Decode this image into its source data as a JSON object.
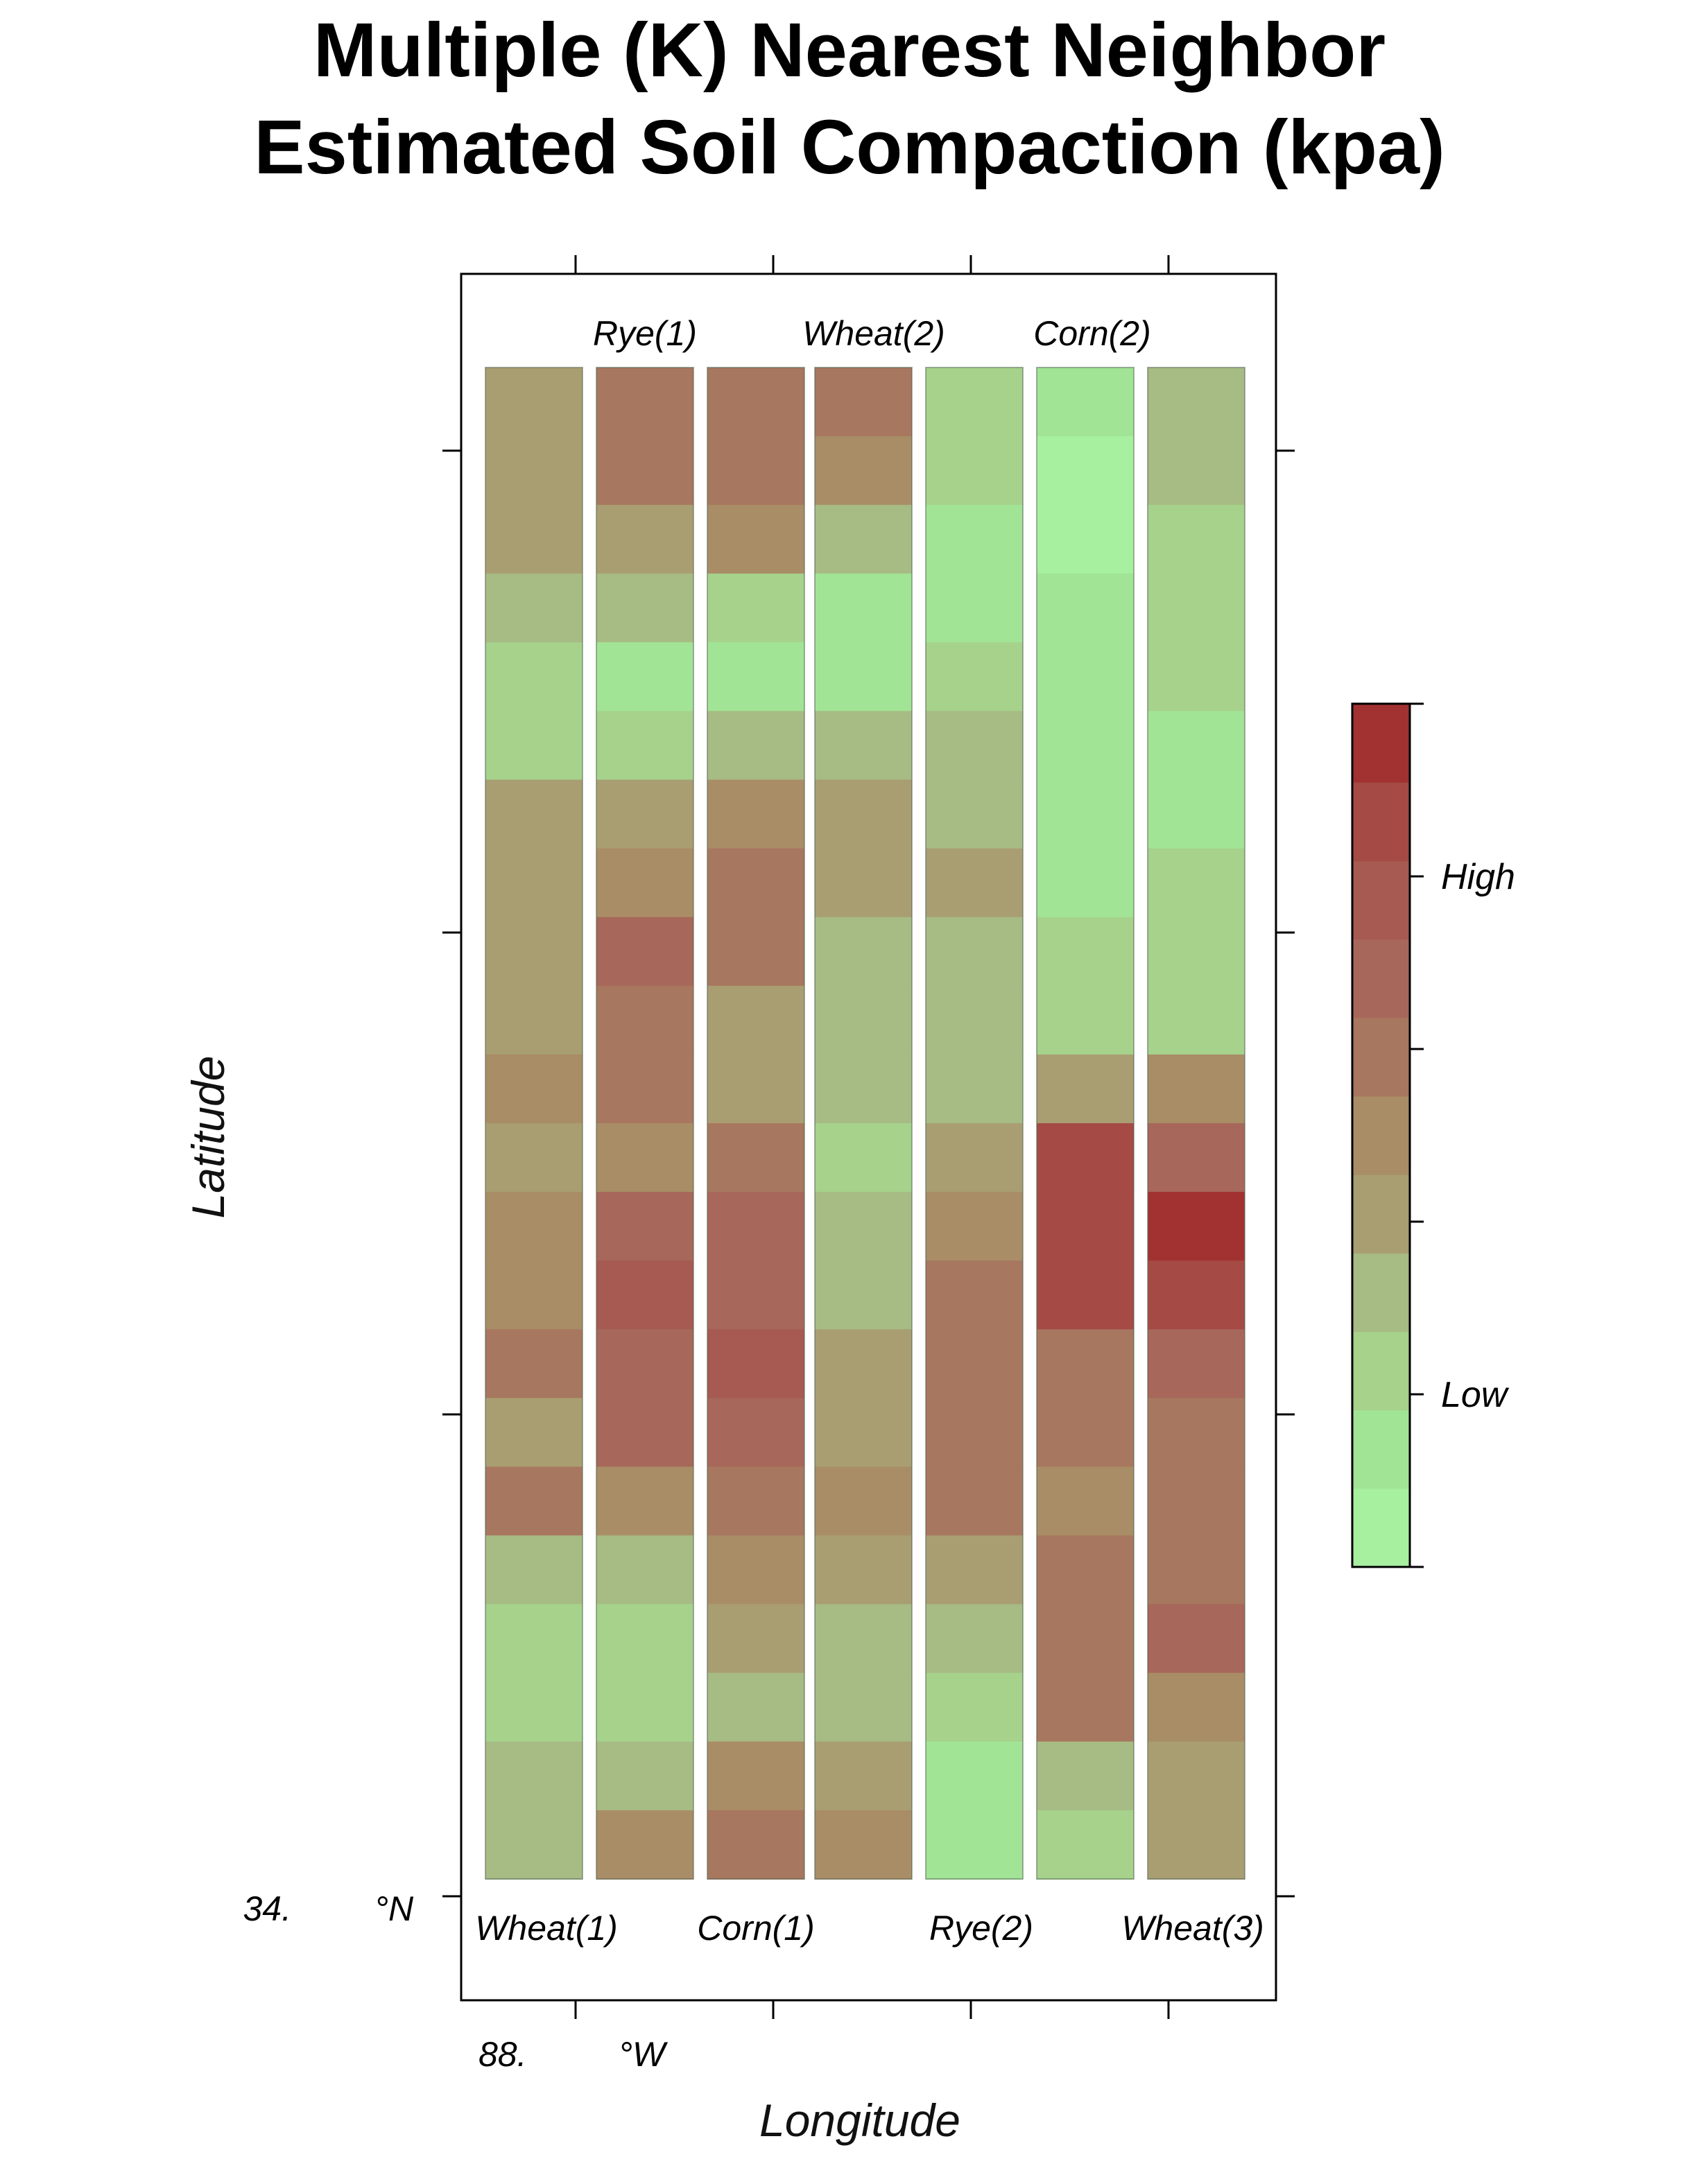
{
  "chart_data": {
    "type": "heatmap",
    "title": "Multiple (K) Nearest Neighbor",
    "subtitle": "Estimated Soil Compaction (kpa)",
    "xlabel": "Longitude",
    "ylabel": "Latitude",
    "x_tick_label": {
      "value": "88.",
      "unit": "°W"
    },
    "y_tick_label": {
      "value": "34.",
      "unit": "°N"
    },
    "strips_top": [
      "Rye(1)",
      "Wheat(2)",
      "Corn(2)"
    ],
    "strips_bottom": [
      "Wheat(1)",
      "Corn(1)",
      "Rye(2)",
      "Wheat(3)"
    ],
    "strips": [
      "Wheat(1)",
      "Rye(1)",
      "Corn(1)",
      "Wheat(2)",
      "Rye(2)",
      "Corn(2)",
      "Wheat(3)"
    ],
    "grid_rows": 22,
    "values": [
      [
        0.45,
        0.58,
        0.62,
        0.6,
        0.22,
        0.1,
        0.3
      ],
      [
        0.42,
        0.55,
        0.58,
        0.52,
        0.2,
        0.08,
        0.28
      ],
      [
        0.4,
        0.45,
        0.5,
        0.35,
        0.15,
        0.08,
        0.25
      ],
      [
        0.35,
        0.3,
        0.25,
        0.18,
        0.12,
        0.1,
        0.22
      ],
      [
        0.25,
        0.18,
        0.12,
        0.15,
        0.2,
        0.12,
        0.2
      ],
      [
        0.2,
        0.22,
        0.35,
        0.3,
        0.28,
        0.12,
        0.18
      ],
      [
        0.4,
        0.45,
        0.5,
        0.45,
        0.32,
        0.15,
        0.18
      ],
      [
        0.45,
        0.5,
        0.55,
        0.4,
        0.38,
        0.18,
        0.2
      ],
      [
        0.38,
        0.65,
        0.58,
        0.3,
        0.3,
        0.2,
        0.22
      ],
      [
        0.4,
        0.62,
        0.45,
        0.32,
        0.28,
        0.25,
        0.25
      ],
      [
        0.48,
        0.55,
        0.45,
        0.3,
        0.35,
        0.4,
        0.5
      ],
      [
        0.42,
        0.5,
        0.6,
        0.25,
        0.45,
        0.82,
        0.7
      ],
      [
        0.48,
        0.65,
        0.7,
        0.3,
        0.5,
        0.88,
        0.92
      ],
      [
        0.5,
        0.75,
        0.65,
        0.35,
        0.55,
        0.85,
        0.88
      ],
      [
        0.58,
        0.7,
        0.75,
        0.4,
        0.55,
        0.6,
        0.65
      ],
      [
        0.42,
        0.72,
        0.7,
        0.45,
        0.62,
        0.55,
        0.62
      ],
      [
        0.55,
        0.48,
        0.62,
        0.5,
        0.55,
        0.5,
        0.6
      ],
      [
        0.35,
        0.3,
        0.5,
        0.45,
        0.45,
        0.58,
        0.62
      ],
      [
        0.25,
        0.25,
        0.4,
        0.35,
        0.35,
        0.62,
        0.66
      ],
      [
        0.2,
        0.2,
        0.3,
        0.28,
        0.25,
        0.55,
        0.52
      ],
      [
        0.28,
        0.35,
        0.5,
        0.45,
        0.15,
        0.3,
        0.4
      ],
      [
        0.32,
        0.52,
        0.6,
        0.5,
        0.12,
        0.25,
        0.42
      ]
    ],
    "colorbar": {
      "labels": [
        {
          "value": 0.8,
          "text": "High"
        },
        {
          "value": 0.2,
          "text": "Low"
        }
      ],
      "colors": [
        "#a7f0a0",
        "#a2e495",
        "#a6d28c",
        "#a7bb84",
        "#a99e72",
        "#a98d66",
        "#a8775f",
        "#a7675a",
        "#a65a52",
        "#a54a45",
        "#a23232"
      ]
    }
  }
}
